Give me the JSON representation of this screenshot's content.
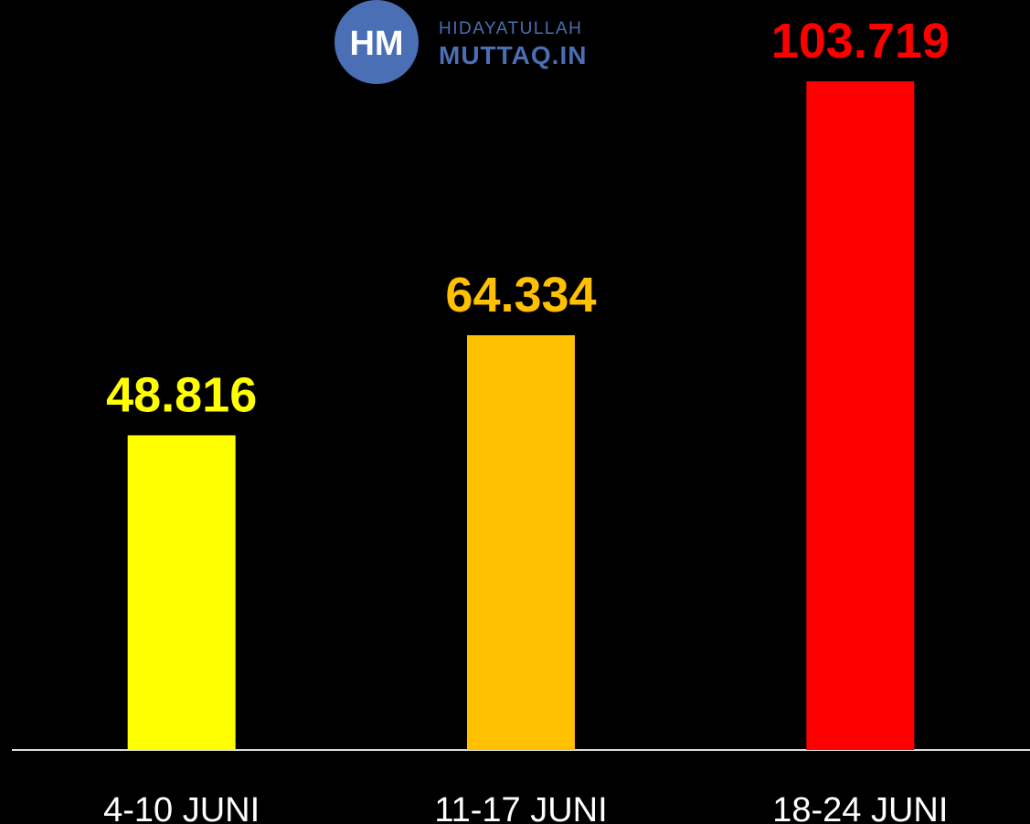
{
  "logo": {
    "initials": "HM",
    "line1": "HIDAYATULLAH",
    "line2": "MUTTAQ.IN"
  },
  "chart_data": {
    "type": "bar",
    "categories": [
      "4-10 JUNI",
      "11-17 JUNI",
      "18-24 JUNI"
    ],
    "values": [
      48816,
      64334,
      103719
    ],
    "value_labels": [
      "48.816",
      "64.334",
      "103.719"
    ],
    "colors": [
      "#ffff00",
      "#ffc000",
      "#ff0000"
    ]
  }
}
